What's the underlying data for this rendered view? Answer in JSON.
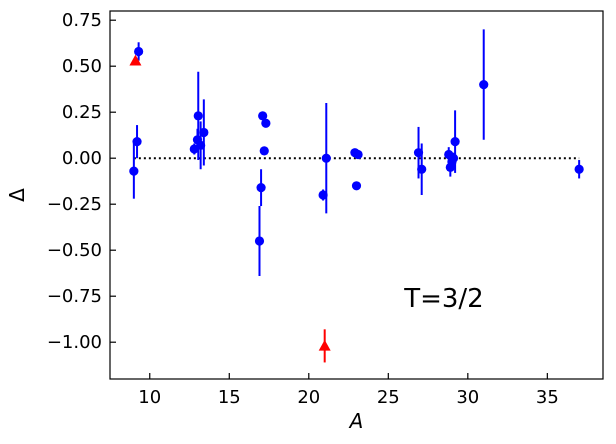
{
  "chart_data": {
    "type": "scatter",
    "xlabel": "A",
    "ylabel": "Δ",
    "xlim": [
      7.5,
      38.5
    ],
    "ylim": [
      -1.2,
      0.8
    ],
    "xticks": [
      10,
      15,
      20,
      25,
      30,
      35
    ],
    "yticks": [
      -1.0,
      -0.75,
      -0.5,
      -0.25,
      0.0,
      0.25,
      0.5,
      0.75
    ],
    "xtick_labels": [
      "10",
      "15",
      "20",
      "25",
      "30",
      "35"
    ],
    "ytick_labels": [
      "−1.00",
      "−0.75",
      "−0.50",
      "−0.25",
      "0.00",
      "0.25",
      "0.50",
      "0.75"
    ],
    "ticks_direction": "in",
    "grid": false,
    "annotation": "T=3/2",
    "reference_line": {
      "y": 0,
      "x_range": [
        9,
        37
      ],
      "style": "dotted",
      "color": "#000000"
    },
    "series": [
      {
        "marker": "circle",
        "color": "#0000ff",
        "points": [
          {
            "x": 9.0,
            "y": -0.07,
            "err": 0.15
          },
          {
            "x": 9.2,
            "y": 0.09,
            "err": 0.09
          },
          {
            "x": 9.3,
            "y": 0.58,
            "err": 0.05
          },
          {
            "x": 12.8,
            "y": 0.05,
            "err": 0.03
          },
          {
            "x": 13.0,
            "y": 0.1,
            "err": 0.06
          },
          {
            "x": 13.05,
            "y": 0.23,
            "err": 0.24
          },
          {
            "x": 13.2,
            "y": 0.07,
            "err": 0.13
          },
          {
            "x": 13.4,
            "y": 0.14,
            "err": 0.18
          },
          {
            "x": 16.9,
            "y": -0.45,
            "err": 0.19
          },
          {
            "x": 17.0,
            "y": -0.16,
            "err": 0.1
          },
          {
            "x": 17.1,
            "y": 0.23,
            "err": 0.02
          },
          {
            "x": 17.2,
            "y": 0.04,
            "err": 0.01
          },
          {
            "x": 17.3,
            "y": 0.19,
            "err": 0.01
          },
          {
            "x": 20.9,
            "y": -0.2,
            "err": 0.03
          },
          {
            "x": 21.1,
            "y": 0.0,
            "err": 0.3
          },
          {
            "x": 22.9,
            "y": 0.03,
            "err": 0.01
          },
          {
            "x": 23.0,
            "y": -0.15,
            "err": 0.01
          },
          {
            "x": 23.1,
            "y": 0.02,
            "err": 0.01
          },
          {
            "x": 26.9,
            "y": 0.03,
            "err": 0.14
          },
          {
            "x": 27.1,
            "y": -0.06,
            "err": 0.14
          },
          {
            "x": 28.8,
            "y": 0.02,
            "err": 0.04
          },
          {
            "x": 28.9,
            "y": -0.05,
            "err": 0.05
          },
          {
            "x": 29.0,
            "y": -0.02,
            "err": 0.04
          },
          {
            "x": 29.1,
            "y": 0.0,
            "err": 0.03
          },
          {
            "x": 29.2,
            "y": 0.09,
            "err": 0.17
          },
          {
            "x": 31.0,
            "y": 0.4,
            "err": 0.3
          },
          {
            "x": 37.0,
            "y": -0.06,
            "err": 0.05
          }
        ]
      },
      {
        "marker": "triangle-up",
        "color": "#ff0000",
        "points": [
          {
            "x": 9.1,
            "y": 0.53,
            "err": 0.0
          },
          {
            "x": 21.0,
            "y": -1.02,
            "err": 0.09
          }
        ]
      }
    ]
  }
}
